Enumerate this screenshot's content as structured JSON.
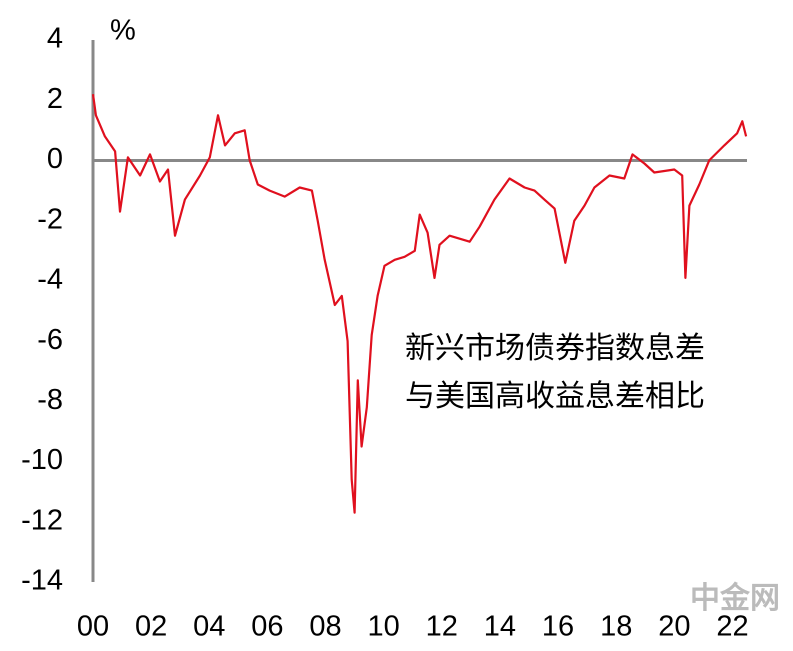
{
  "chart_data": {
    "type": "line",
    "ylabel": "%",
    "annotation": [
      "新兴市场债券指数息差",
      "与美国高收益息差相比"
    ],
    "watermark": "中金网",
    "x": [
      2000.0,
      2000.1,
      2000.41,
      2000.76,
      2000.93,
      2001.2,
      2001.62,
      2001.96,
      2002.3,
      2002.58,
      2002.82,
      2003.16,
      2003.68,
      2004.02,
      2004.3,
      2004.54,
      2004.88,
      2005.22,
      2005.39,
      2005.67,
      2006.08,
      2006.6,
      2007.11,
      2007.53,
      2007.73,
      2007.97,
      2008.32,
      2008.56,
      2008.76,
      2008.9,
      2009.0,
      2009.11,
      2009.24,
      2009.42,
      2009.59,
      2009.79,
      2010.03,
      2010.38,
      2010.72,
      2011.07,
      2011.24,
      2011.51,
      2011.75,
      2011.92,
      2012.27,
      2012.96,
      2013.3,
      2013.81,
      2014.33,
      2014.85,
      2015.19,
      2015.53,
      2015.88,
      2016.25,
      2016.56,
      2016.91,
      2017.25,
      2017.77,
      2018.28,
      2018.56,
      2018.97,
      2019.31,
      2020.0,
      2020.27,
      2020.38,
      2020.52,
      2020.86,
      2021.2,
      2021.72,
      2022.16,
      2022.34,
      2022.47
    ],
    "series": [
      {
        "color": "#e0101e",
        "values": [
          2.2,
          1.5,
          0.8,
          0.3,
          -1.7,
          0.1,
          -0.5,
          0.2,
          -0.7,
          -0.3,
          -2.5,
          -1.3,
          -0.5,
          0.1,
          1.5,
          0.5,
          0.9,
          1.0,
          0.0,
          -0.8,
          -1.0,
          -1.2,
          -0.9,
          -1.0,
          -2.0,
          -3.3,
          -4.8,
          -4.5,
          -6.0,
          -10.6,
          -11.7,
          -7.3,
          -9.5,
          -8.2,
          -5.8,
          -4.5,
          -3.5,
          -3.3,
          -3.2,
          -3.0,
          -1.8,
          -2.4,
          -3.9,
          -2.8,
          -2.5,
          -2.7,
          -2.2,
          -1.3,
          -0.6,
          -0.9,
          -1.0,
          -1.3,
          -1.6,
          -3.4,
          -2.0,
          -1.5,
          -0.9,
          -0.5,
          -0.6,
          0.2,
          -0.1,
          -0.4,
          -0.3,
          -0.5,
          -3.9,
          -1.5,
          -0.8,
          0.0,
          0.5,
          0.9,
          1.3,
          0.8
        ]
      }
    ],
    "reference_line": 0,
    "xlim": [
      2000,
      2022.5
    ],
    "xticks": [
      {
        "value": 2000,
        "label": "00"
      },
      {
        "value": 2002,
        "label": "02"
      },
      {
        "value": 2004,
        "label": "04"
      },
      {
        "value": 2006,
        "label": "06"
      },
      {
        "value": 2008,
        "label": "08"
      },
      {
        "value": 2010,
        "label": "10"
      },
      {
        "value": 2012,
        "label": "12"
      },
      {
        "value": 2014,
        "label": "14"
      },
      {
        "value": 2016,
        "label": "16"
      },
      {
        "value": 2018,
        "label": "18"
      },
      {
        "value": 2020,
        "label": "20"
      },
      {
        "value": 2022,
        "label": "22"
      }
    ],
    "ylim": [
      -14,
      4
    ],
    "yticks": [
      -14,
      -12,
      -10,
      -8,
      -6,
      -4,
      -2,
      0,
      2,
      4
    ],
    "grid": false
  }
}
